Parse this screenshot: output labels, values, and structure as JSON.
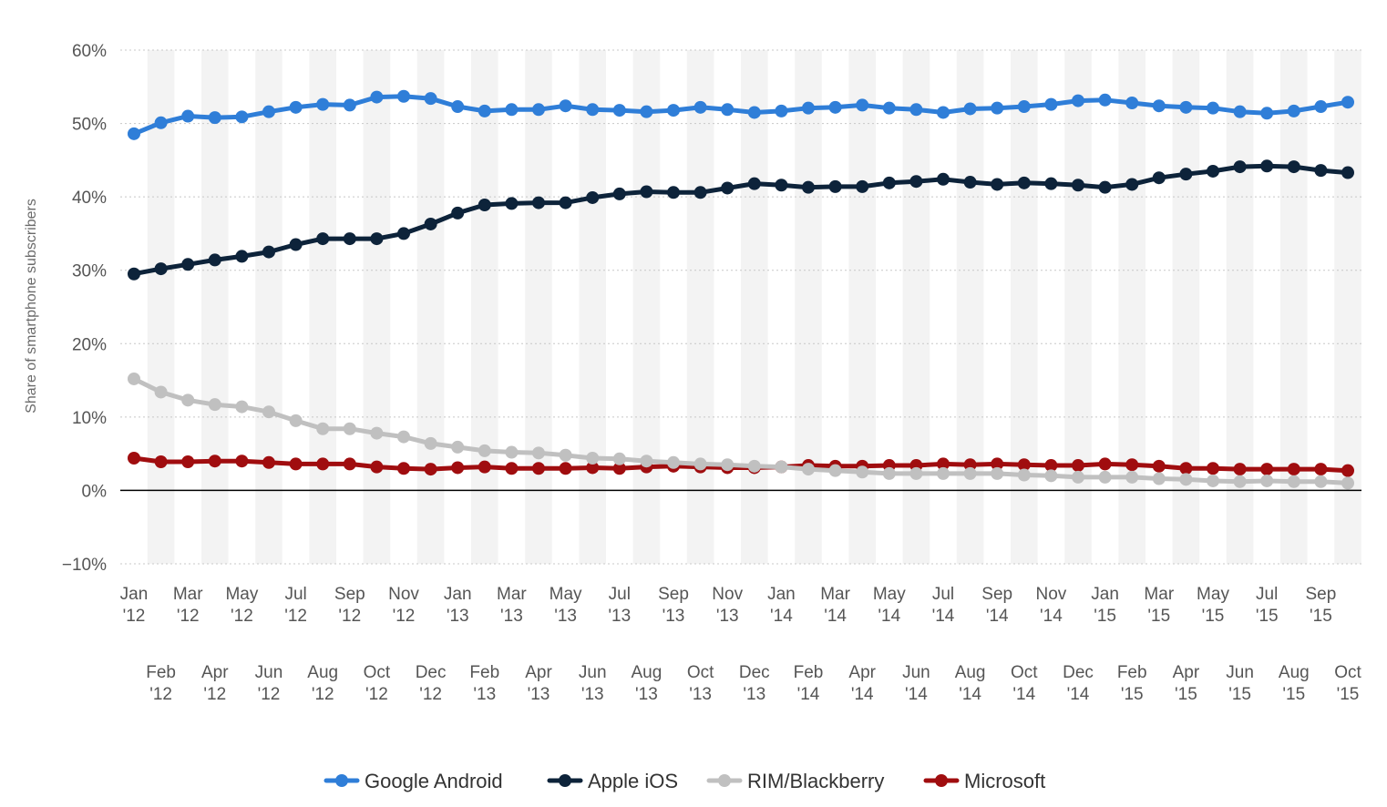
{
  "chart_data": {
    "type": "line",
    "title": "",
    "xlabel": "",
    "ylabel": "Share of smartphone subscribers",
    "ylim": [
      -10,
      60
    ],
    "yticks": [
      -10,
      0,
      10,
      20,
      30,
      40,
      50,
      60
    ],
    "ytick_labels": [
      "−10%",
      "0%",
      "10%",
      "20%",
      "30%",
      "40%",
      "50%",
      "60%"
    ],
    "grid": true,
    "legend_position": "bottom",
    "categories": [
      [
        "Jan",
        "'12"
      ],
      [
        "Feb",
        "'12"
      ],
      [
        "Mar",
        "'12"
      ],
      [
        "Apr",
        "'12"
      ],
      [
        "May",
        "'12"
      ],
      [
        "Jun",
        "'12"
      ],
      [
        "Jul",
        "'12"
      ],
      [
        "Aug",
        "'12"
      ],
      [
        "Sep",
        "'12"
      ],
      [
        "Oct",
        "'12"
      ],
      [
        "Nov",
        "'12"
      ],
      [
        "Dec",
        "'12"
      ],
      [
        "Jan",
        "'13"
      ],
      [
        "Feb",
        "'13"
      ],
      [
        "Mar",
        "'13"
      ],
      [
        "Apr",
        "'13"
      ],
      [
        "May",
        "'13"
      ],
      [
        "Jun",
        "'13"
      ],
      [
        "Jul",
        "'13"
      ],
      [
        "Aug",
        "'13"
      ],
      [
        "Sep",
        "'13"
      ],
      [
        "Oct",
        "'13"
      ],
      [
        "Nov",
        "'13"
      ],
      [
        "Dec",
        "'13"
      ],
      [
        "Jan",
        "'14"
      ],
      [
        "Feb",
        "'14"
      ],
      [
        "Mar",
        "'14"
      ],
      [
        "Apr",
        "'14"
      ],
      [
        "May",
        "'14"
      ],
      [
        "Jun",
        "'14"
      ],
      [
        "Jul",
        "'14"
      ],
      [
        "Aug",
        "'14"
      ],
      [
        "Sep",
        "'14"
      ],
      [
        "Oct",
        "'14"
      ],
      [
        "Nov",
        "'14"
      ],
      [
        "Dec",
        "'14"
      ],
      [
        "Jan",
        "'15"
      ],
      [
        "Feb",
        "'15"
      ],
      [
        "Mar",
        "'15"
      ],
      [
        "Apr",
        "'15"
      ],
      [
        "May",
        "'15"
      ],
      [
        "Jun",
        "'15"
      ],
      [
        "Jul",
        "'15"
      ],
      [
        "Aug",
        "'15"
      ],
      [
        "Sep",
        "'15"
      ],
      [
        "Oct",
        "'15"
      ]
    ],
    "series": [
      {
        "name": "Google Android",
        "color": "#2f7ed8",
        "values": [
          48.6,
          50.1,
          51.0,
          50.8,
          50.9,
          51.6,
          52.2,
          52.6,
          52.5,
          53.6,
          53.7,
          53.4,
          52.3,
          51.7,
          51.9,
          51.9,
          52.4,
          51.9,
          51.8,
          51.6,
          51.8,
          52.2,
          51.9,
          51.5,
          51.7,
          52.1,
          52.2,
          52.5,
          52.1,
          51.9,
          51.5,
          52.0,
          52.1,
          52.3,
          52.6,
          53.1,
          53.2,
          52.8,
          52.4,
          52.2,
          52.1,
          51.6,
          51.4,
          51.7,
          52.3,
          52.9
        ]
      },
      {
        "name": "Apple iOS",
        "color": "#0d233a",
        "values": [
          29.5,
          30.2,
          30.8,
          31.4,
          31.9,
          32.5,
          33.5,
          34.3,
          34.3,
          34.3,
          35.0,
          36.3,
          37.8,
          38.9,
          39.1,
          39.2,
          39.2,
          39.9,
          40.4,
          40.7,
          40.6,
          40.6,
          41.2,
          41.8,
          41.6,
          41.3,
          41.4,
          41.4,
          41.9,
          42.1,
          42.4,
          42.0,
          41.7,
          41.9,
          41.8,
          41.6,
          41.3,
          41.7,
          42.6,
          43.1,
          43.5,
          44.1,
          44.2,
          44.1,
          43.6,
          43.3
        ]
      },
      {
        "name": "RIM/Blackberry",
        "color": "#c0c0c0",
        "values": [
          15.2,
          13.4,
          12.3,
          11.7,
          11.4,
          10.7,
          9.5,
          8.4,
          8.4,
          7.8,
          7.3,
          6.4,
          5.9,
          5.4,
          5.2,
          5.1,
          4.8,
          4.4,
          4.3,
          4.0,
          3.8,
          3.6,
          3.5,
          3.3,
          3.2,
          2.9,
          2.7,
          2.5,
          2.3,
          2.3,
          2.3,
          2.3,
          2.3,
          2.1,
          2.0,
          1.8,
          1.8,
          1.8,
          1.6,
          1.5,
          1.3,
          1.2,
          1.3,
          1.2,
          1.2,
          1.0
        ]
      },
      {
        "name": "Microsoft",
        "color": "#a00d0f",
        "values": [
          4.4,
          3.9,
          3.9,
          4.0,
          4.0,
          3.8,
          3.6,
          3.6,
          3.6,
          3.2,
          3.0,
          2.9,
          3.1,
          3.2,
          3.0,
          3.0,
          3.0,
          3.1,
          3.0,
          3.2,
          3.3,
          3.2,
          3.1,
          3.1,
          3.2,
          3.4,
          3.3,
          3.3,
          3.4,
          3.4,
          3.6,
          3.5,
          3.6,
          3.5,
          3.4,
          3.4,
          3.6,
          3.5,
          3.3,
          3.0,
          3.0,
          2.9,
          2.9,
          2.9,
          2.9,
          2.7
        ]
      }
    ]
  }
}
